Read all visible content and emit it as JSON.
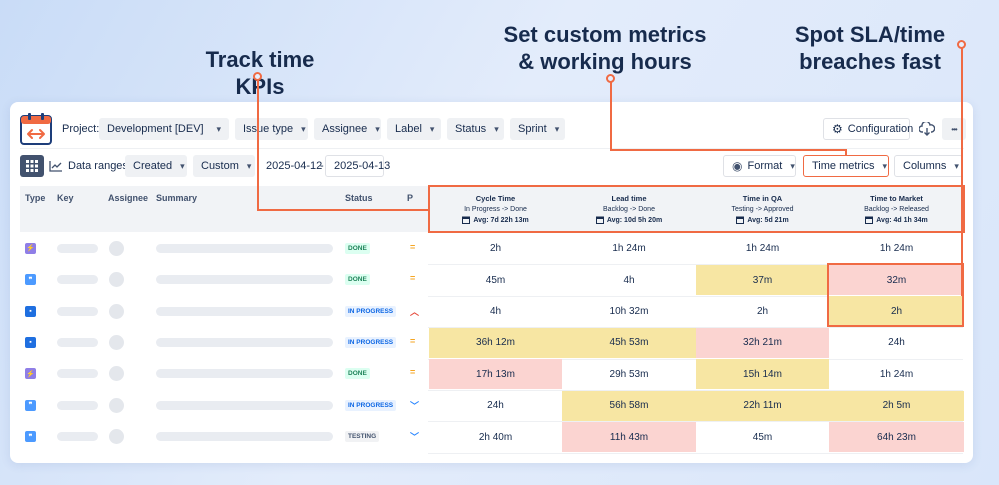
{
  "callouts": {
    "track": "Track time KPIs",
    "custom_l1": "Set custom metrics",
    "custom_l2": "& working hours",
    "spot_l1": "Spot SLA/time",
    "spot_l2": "breaches fast"
  },
  "colors": {
    "accent": "#f06a43",
    "yellow": "#f7e6a3",
    "red": "#fbd4d1",
    "done": "#1f845a",
    "inprogress": "#0c66e4"
  },
  "toolbar": {
    "project_label": "Project:",
    "project_value": "Development [DEV]",
    "issue_type": "Issue type",
    "assignee": "Assignee",
    "label": "Label",
    "status": "Status",
    "sprint": "Sprint",
    "configuration": "Configuration",
    "more": "•••"
  },
  "toolbar2": {
    "data_ranges": "Data ranges:",
    "created": "Created",
    "custom": "Custom",
    "date_from": "2025-04-12",
    "date_sep": "-",
    "date_to": "2025-04-13",
    "format": "Format",
    "time_metrics": "Time metrics",
    "columns": "Columns"
  },
  "table": {
    "headers": {
      "type": "Type",
      "key": "Key",
      "assignee": "Assignee",
      "summary": "Summary",
      "status": "Status",
      "p": "P"
    },
    "metrics": [
      {
        "title": "Cycle Time",
        "sub": "In Progress -> Done",
        "avg": "Avg: 7d 22h 13m"
      },
      {
        "title": "Lead time",
        "sub": "Backlog -> Done",
        "avg": "Avg: 10d 5h 20m"
      },
      {
        "title": "Time in QA",
        "sub": "Testing -> Approved",
        "avg": "Avg: 5d 21m"
      },
      {
        "title": "Time to Market",
        "sub": "Backlog -> Released",
        "avg": "Avg: 4d 1h 34m"
      }
    ],
    "rows": [
      {
        "type": "bolt",
        "status": "DONE",
        "prio": "medium",
        "vals": [
          "2h",
          "1h 24m",
          "1h 24m",
          "1h 24m"
        ],
        "hl": [
          "",
          "",
          "",
          ""
        ]
      },
      {
        "type": "quote",
        "status": "DONE",
        "prio": "medium",
        "vals": [
          "45m",
          "4h",
          "37m",
          "32m"
        ],
        "hl": [
          "",
          "",
          "y",
          "r"
        ]
      },
      {
        "type": "story",
        "status": "IN PROGRESS",
        "prio": "high",
        "vals": [
          "4h",
          "10h 32m",
          "2h",
          "2h"
        ],
        "hl": [
          "",
          "",
          "",
          "y"
        ]
      },
      {
        "type": "story",
        "status": "IN PROGRESS",
        "prio": "medium",
        "vals": [
          "36h 12m",
          "45h 53m",
          "32h 21m",
          "24h"
        ],
        "hl": [
          "y",
          "y",
          "r",
          ""
        ]
      },
      {
        "type": "bolt",
        "status": "DONE",
        "prio": "medium",
        "vals": [
          "17h 13m",
          "29h 53m",
          "15h 14m",
          "1h 24m"
        ],
        "hl": [
          "r",
          "",
          "y",
          ""
        ]
      },
      {
        "type": "quote",
        "status": "IN PROGRESS",
        "prio": "low",
        "vals": [
          "24h",
          "56h 58m",
          "22h 11m",
          "2h 5m"
        ],
        "hl": [
          "",
          "y",
          "y",
          "y"
        ]
      },
      {
        "type": "quote",
        "status": "TESTING",
        "prio": "low",
        "vals": [
          "2h 40m",
          "11h 43m",
          "45m",
          "64h 23m"
        ],
        "hl": [
          "",
          "r",
          "",
          "r"
        ]
      }
    ]
  }
}
